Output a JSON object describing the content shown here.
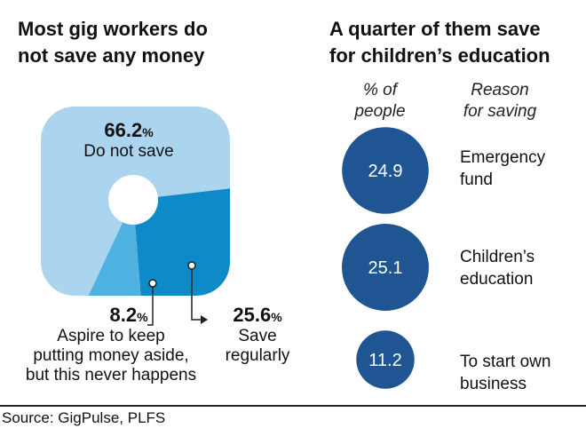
{
  "chart_data": [
    {
      "type": "pie",
      "title": "Most gig workers do not save any money",
      "unit": "%",
      "slices": [
        {
          "label": "Do not save",
          "value": 66.2
        },
        {
          "label": "Save regularly",
          "value": 25.6
        },
        {
          "label": "Aspire to keep putting money aside, but this never happens",
          "value": 8.2
        }
      ],
      "value_labels": [
        "66.2",
        "25.6",
        "8.2"
      ]
    },
    {
      "type": "table",
      "title": "A quarter of them save for children’s education",
      "columns": [
        "% of people",
        "Reason for saving"
      ],
      "rows": [
        {
          "value": 24.9,
          "label": "Emergency fund"
        },
        {
          "value": 25.1,
          "label": "Children’s education"
        },
        {
          "value": 11.2,
          "label": "To start own business"
        }
      ]
    }
  ],
  "left_title_line1": "Most gig workers do",
  "left_title_line2": "not save any money",
  "right_title_line1": "A quarter of them save",
  "right_title_line2": "for children’s education",
  "col_people_line1": "% of",
  "col_people_line2": "people",
  "col_reason_line1": "Reason",
  "col_reason_line2": "for saving",
  "labels": {
    "do_not_save": {
      "value": "66.2",
      "unit": "%",
      "text": "Do not save"
    },
    "save_regularly": {
      "value": "25.6",
      "unit": "%",
      "line1": "Save",
      "line2": "regularly"
    },
    "aspire": {
      "value": "8.2",
      "unit": "%",
      "line1": "Aspire to keep",
      "line2": "putting money aside,",
      "line3": "but this never happens"
    }
  },
  "bubbles": [
    {
      "value": "24.9",
      "reason_line1": "Emergency",
      "reason_line2": "fund"
    },
    {
      "value": "25.1",
      "reason_line1": "Children’s",
      "reason_line2": "education"
    },
    {
      "value": "11.2",
      "reason_line1": "To start own",
      "reason_line2": "business"
    }
  ],
  "source": "Source: GigPulse, PLFS",
  "colors": {
    "do_not_save": "#abd5ef",
    "save_regularly": "#0f8ac8",
    "aspire": "#4fb1e0",
    "bubble": "#1f5593",
    "hole": "#ffffff"
  }
}
